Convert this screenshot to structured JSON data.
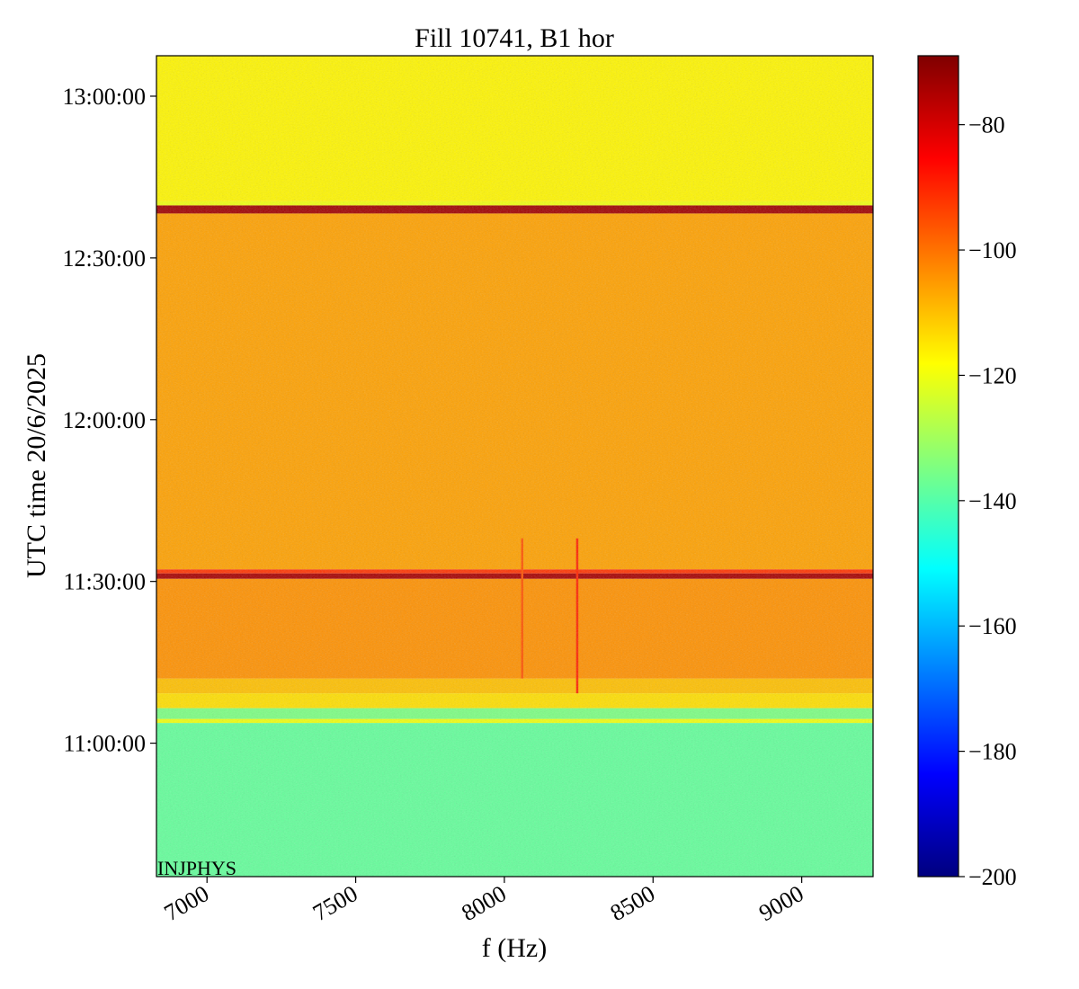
{
  "chart_data": {
    "type": "heatmap",
    "title": "Fill 10741, B1 hor",
    "xlabel": "f (Hz)",
    "ylabel": "UTC time 20/6/2025",
    "xlim": [
      6830,
      9240
    ],
    "ylim": [
      "10:35:15",
      "13:07:30"
    ],
    "x_ticks": [
      7000,
      7500,
      8000,
      8500,
      9000
    ],
    "y_ticks": [
      "11:00:00",
      "11:30:00",
      "12:00:00",
      "12:30:00",
      "13:00:00"
    ],
    "colorbar": {
      "colormap": "jet",
      "range": [
        -200,
        -69
      ],
      "ticks": [
        -200,
        -180,
        -160,
        -140,
        -120,
        -100,
        -80
      ],
      "tick_labels": [
        "−200",
        "−180",
        "−160",
        "−140",
        "−120",
        "−100",
        "−80"
      ]
    },
    "annotation": "INJPHYS",
    "bands": [
      {
        "from": "10:35:15",
        "to": "11:03:45",
        "level_dB": -138
      },
      {
        "from": "11:03:45",
        "to": "11:04:30",
        "level_dB": -120
      },
      {
        "from": "11:04:30",
        "to": "11:06:30",
        "level_dB": -135
      },
      {
        "from": "11:06:30",
        "to": "11:09:15",
        "level_dB": -114
      },
      {
        "from": "11:09:15",
        "to": "11:12:00",
        "level_dB": -110
      },
      {
        "from": "11:12:00",
        "to": "11:30:30",
        "level_dB": -104
      },
      {
        "from": "11:30:30",
        "to": "11:31:30",
        "level_dB": -74
      },
      {
        "from": "11:31:30",
        "to": "11:32:15",
        "level_dB": -92
      },
      {
        "from": "11:32:15",
        "to": "12:38:15",
        "level_dB": -106
      },
      {
        "from": "12:38:15",
        "to": "12:39:45",
        "level_dB": -73
      },
      {
        "from": "12:39:45",
        "to": "12:40:30",
        "level_dB": -120
      },
      {
        "from": "12:40:30",
        "to": "13:07:30",
        "level_dB": -117
      }
    ],
    "features": [
      {
        "kind": "vertical-line",
        "x": 8245,
        "from": "11:09:15",
        "to": "11:38:00",
        "level_dB": -90
      },
      {
        "kind": "vertical-line",
        "x": 8060,
        "from": "11:12:00",
        "to": "11:38:00",
        "level_dB": -96
      }
    ]
  }
}
